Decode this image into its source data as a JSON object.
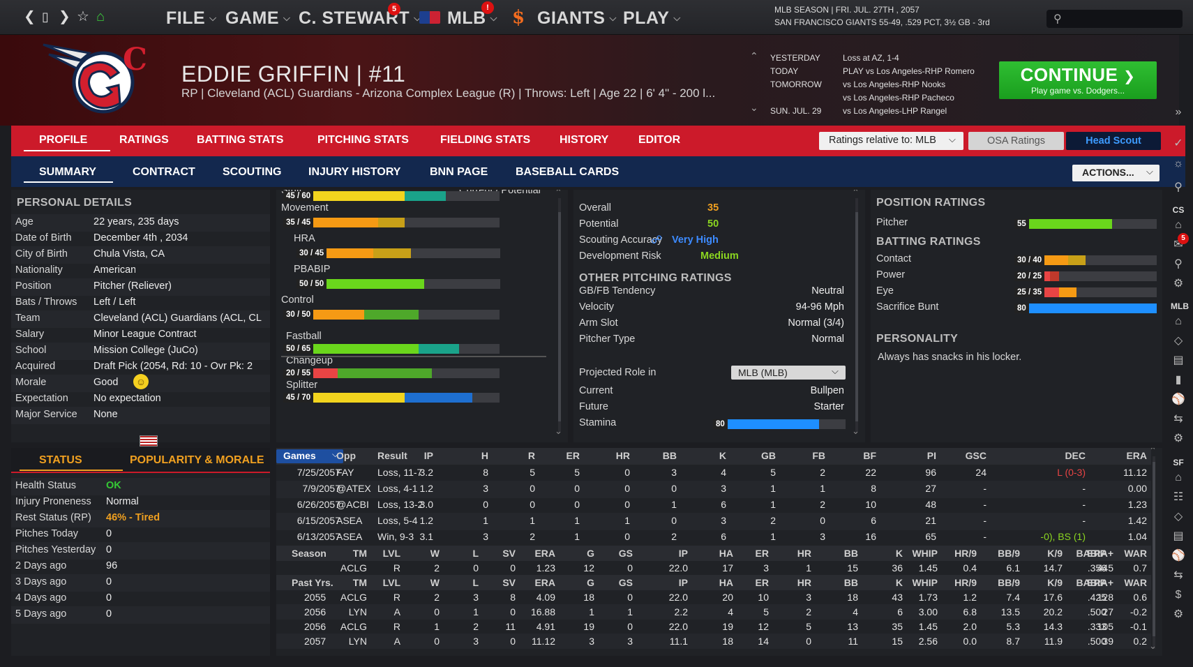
{
  "topbar": {
    "menus": [
      "FILE",
      "GAME",
      "C. STEWART",
      "MLB",
      "GIANTS",
      "PLAY"
    ],
    "badges": {
      "c_stewart": "5",
      "mlb": "!"
    },
    "season_line1": "MLB SEASON  |  FRI. JUL. 27TH , 2057",
    "season_line2": "SAN FRANCISCO GIANTS  55-49, .529 PCT, 3½ GB - 3rd"
  },
  "player": {
    "name": "EDDIE GRIFFIN  |  #11",
    "subtitle": "RP | Cleveland (ACL) Guardians - Arizona Complex League (R)  |  Throws: Left  |  Age 22  |  6' 4\"  - 200 l...",
    "logo_letter": "C"
  },
  "schedule": [
    {
      "day": "YESTERDAY",
      "game": "Loss at AZ, 1-4"
    },
    {
      "day": "TODAY",
      "game": "PLAY vs Los Angeles-RHP Romero"
    },
    {
      "day": "TOMORROW",
      "game": "vs Los Angeles-RHP Nooks"
    },
    {
      "day": "",
      "game": "vs Los Angeles-RHP Pacheco"
    },
    {
      "day": "SUN. JUL. 29",
      "game": "vs Los Angeles-LHP Rangel"
    }
  ],
  "continue": {
    "label": "CONTINUE",
    "sub": "Play game vs. Dodgers..."
  },
  "tabs_main": [
    "PROFILE",
    "RATINGS",
    "BATTING STATS",
    "PITCHING STATS",
    "FIELDING STATS",
    "HISTORY",
    "EDITOR"
  ],
  "ratings_relative": "Ratings relative to: MLB",
  "osa_ratings": "OSA Ratings",
  "head_scout": "Head Scout",
  "tabs_sub": [
    "SUMMARY",
    "CONTRACT",
    "SCOUTING",
    "INJURY HISTORY",
    "BNN PAGE",
    "BASEBALL CARDS"
  ],
  "actions": "ACTIONS...",
  "personal": {
    "title": "PERSONAL DETAILS",
    "rows": [
      {
        "k": "Age",
        "v": "22 years, 235 days"
      },
      {
        "k": "Date of Birth",
        "v": "December 4th , 2034"
      },
      {
        "k": "City of Birth",
        "v": "Chula Vista, CA"
      },
      {
        "k": "Nationality",
        "v": "American"
      },
      {
        "k": "Position",
        "v": "Pitcher (Reliever)"
      },
      {
        "k": "Bats / Throws",
        "v": "Left / Left"
      },
      {
        "k": "Team",
        "v": "Cleveland (ACL) Guardians (ACL, CL"
      },
      {
        "k": "Salary",
        "v": "Minor League Contract"
      },
      {
        "k": "School",
        "v": "Mission College (JuCo)"
      },
      {
        "k": "Acquired",
        "v": "Draft Pick (2054, Rd: 10 - Ovr Pk: 2"
      },
      {
        "k": "Morale",
        "v": "Good"
      },
      {
        "k": "Expectation",
        "v": "No expectation"
      },
      {
        "k": "Major Service",
        "v": "None"
      }
    ]
  },
  "status": {
    "tab1": "STATUS",
    "tab2": "POPULARITY & MORALE",
    "rows": [
      {
        "k": "Health Status",
        "v": "OK",
        "color": "#35c935"
      },
      {
        "k": "Injury Proneness",
        "v": "Normal",
        "color": ""
      },
      {
        "k": "Rest Status (RP)",
        "v": "46% - Tired",
        "color": "#f0a020"
      },
      {
        "k": "Pitches Today",
        "v": "0",
        "color": ""
      },
      {
        "k": "Pitches Yesterday",
        "v": "0",
        "color": ""
      },
      {
        "k": "2 Days ago",
        "v": "96",
        "color": ""
      },
      {
        "k": "3 Days ago",
        "v": "0",
        "color": ""
      },
      {
        "k": "4 Days ago",
        "v": "0",
        "color": ""
      },
      {
        "k": "5 Days ago",
        "v": "0",
        "color": ""
      }
    ]
  },
  "pitch_ratings": {
    "header_left": "Stuff",
    "header_right": "Current / Potential",
    "items": [
      {
        "name": "",
        "label": "45 / 60",
        "cur": 45,
        "pot": 60,
        "ccolor": "#f2d41e",
        "pcolor": "#1aa38a",
        "indent": false
      },
      {
        "name": "Movement",
        "label": "35 / 45",
        "cur": 35,
        "pot": 45,
        "ccolor": "#f59a14",
        "pcolor": "#c8a018",
        "indent": false
      },
      {
        "name": "HRA",
        "label": "30 / 45",
        "cur": 30,
        "pot": 45,
        "ccolor": "#f59a14",
        "pcolor": "#c8a018",
        "indent": true
      },
      {
        "name": "PBABIP",
        "label": "50 / 50",
        "cur": 50,
        "pot": 50,
        "ccolor": "#6ad61c",
        "pcolor": "#6ad61c",
        "indent": true
      },
      {
        "name": "Control",
        "label": "30 / 50",
        "cur": 30,
        "pot": 50,
        "ccolor": "#f59a14",
        "pcolor": "#4ea82a",
        "indent": false
      }
    ],
    "pitches": [
      {
        "name": "Fastball",
        "label": "50 / 65",
        "cur": 50,
        "pot": 65,
        "ccolor": "#6ad61c",
        "pcolor": "#1aa38a"
      },
      {
        "name": "Changeup",
        "label": "20 / 55",
        "cur": 20,
        "pot": 55,
        "ccolor": "#e84444",
        "pcolor": "#4ea82a"
      },
      {
        "name": "Splitter",
        "label": "45 / 70",
        "cur": 45,
        "pot": 70,
        "ccolor": "#f2d41e",
        "pcolor": "#1e6fd0"
      }
    ]
  },
  "overall": {
    "rows": [
      {
        "k": "Overall",
        "v": "35",
        "color": "#f0a020"
      },
      {
        "k": "Potential",
        "v": "50",
        "color": "#8bd620"
      },
      {
        "k": "Scouting Accuracy",
        "v": "Very High",
        "color": "#3d8bff"
      },
      {
        "k": "Development Risk",
        "v": "Medium",
        "color": "#8bd620"
      }
    ],
    "other_title": "OTHER PITCHING RATINGS",
    "other": [
      {
        "k": "GB/FB Tendency",
        "v": "Neutral"
      },
      {
        "k": "Velocity",
        "v": "94-96 Mph"
      },
      {
        "k": "Arm Slot",
        "v": "Normal (3/4)"
      },
      {
        "k": "Pitcher Type",
        "v": "Normal"
      }
    ],
    "projected_label": "Projected Role in",
    "projected_select": "MLB (MLB)",
    "roles": [
      {
        "k": "Current",
        "v": "Bullpen"
      },
      {
        "k": "Future",
        "v": "Starter"
      }
    ],
    "stamina_label": "Stamina",
    "stamina": 80
  },
  "position_ratings": {
    "title": "POSITION RATINGS",
    "pitcher_label": "Pitcher",
    "pitcher_label_val": "55",
    "pitcher": 55,
    "batting_title": "BATTING RATINGS",
    "batting": [
      {
        "k": "Contact",
        "label": "30 / 40",
        "cur": 30,
        "pot": 40,
        "ccolor": "#f59a14",
        "pcolor": "#c8a018"
      },
      {
        "k": "Power",
        "label": "20 / 25",
        "cur": 20,
        "pot": 25,
        "ccolor": "#e84444",
        "pcolor": "#c0392b"
      },
      {
        "k": "Eye",
        "label": "25 / 35",
        "cur": 25,
        "pot": 35,
        "ccolor": "#e84444",
        "pcolor": "#f59a14"
      },
      {
        "k": "Sacrifice Bunt",
        "label": "80",
        "cur": 80,
        "pot": 80,
        "ccolor": "#1e8fff",
        "pcolor": "#1e8fff"
      }
    ],
    "personality_title": "PERSONALITY",
    "personality": "Always has snacks in his locker."
  },
  "games": {
    "select": "Games",
    "headers": [
      "Opp",
      "Result",
      "IP",
      "H",
      "R",
      "ER",
      "HR",
      "BB",
      "K",
      "GB",
      "FB",
      "BF",
      "PI",
      "GSC",
      "DEC",
      "ERA"
    ],
    "rows": [
      [
        "7/25/2057",
        "FAY",
        "Loss, 11-7",
        "3.2",
        "8",
        "5",
        "5",
        "0",
        "3",
        "4",
        "5",
        "2",
        "22",
        "96",
        "24",
        "L (0-3)",
        "11.12"
      ],
      [
        "7/9/2057",
        "@ATEX",
        "Loss, 4-1",
        "1.2",
        "3",
        "0",
        "0",
        "0",
        "0",
        "3",
        "1",
        "1",
        "8",
        "27",
        "-",
        "-",
        "0.00"
      ],
      [
        "6/26/2057",
        "@ACBI",
        "Loss, 13-2",
        "3.0",
        "0",
        "0",
        "0",
        "0",
        "1",
        "6",
        "1",
        "2",
        "10",
        "48",
        "-",
        "-",
        "1.23"
      ],
      [
        "6/15/2057",
        "ASEA",
        "Loss, 5-4",
        "1.2",
        "1",
        "1",
        "1",
        "1",
        "0",
        "3",
        "2",
        "0",
        "6",
        "21",
        "-",
        "-",
        "1.42"
      ],
      [
        "6/13/2057",
        "ASEA",
        "Win, 9-3",
        "3.1",
        "3",
        "2",
        "1",
        "0",
        "2",
        "6",
        "1",
        "3",
        "16",
        "65",
        "-",
        "-0), BS (1)",
        "1.04"
      ]
    ],
    "season_headers": [
      "Season",
      "TM",
      "LVL",
      "W",
      "L",
      "SV",
      "ERA",
      "G",
      "GS",
      "IP",
      "HA",
      "ER",
      "HR",
      "BB",
      "K",
      "WHIP",
      "HR/9",
      "BB/9",
      "K/9",
      "BABIP",
      "ERA+",
      "WAR"
    ],
    "season_row": [
      "",
      "ACLG",
      "R",
      "2",
      "0",
      "0",
      "1.23",
      "12",
      "0",
      "22.0",
      "17",
      "3",
      "1",
      "15",
      "36",
      "1.45",
      "0.4",
      "6.1",
      "14.7",
      ".356",
      "445",
      "0.7"
    ],
    "past_headers": [
      "Past Yrs.",
      "TM",
      "LVL",
      "W",
      "L",
      "SV",
      "ERA",
      "G",
      "GS",
      "IP",
      "HA",
      "ER",
      "HR",
      "BB",
      "K",
      "WHIP",
      "HR/9",
      "BB/9",
      "K/9",
      "BABIP",
      "ERA+",
      "WAR"
    ],
    "past_rows": [
      [
        "2055",
        "ACLG",
        "R",
        "2",
        "3",
        "8",
        "4.09",
        "18",
        "0",
        "22.0",
        "20",
        "10",
        "3",
        "18",
        "43",
        "1.73",
        "1.2",
        "7.4",
        "17.6",
        ".425",
        "128",
        "0.6"
      ],
      [
        "2056",
        "LYN",
        "A",
        "0",
        "1",
        "0",
        "16.88",
        "1",
        "1",
        "2.2",
        "4",
        "5",
        "2",
        "4",
        "6",
        "3.00",
        "6.8",
        "13.5",
        "20.2",
        ".500",
        "27",
        "-0.2"
      ],
      [
        "2056",
        "ACLG",
        "R",
        "1",
        "2",
        "11",
        "4.91",
        "19",
        "0",
        "22.0",
        "19",
        "12",
        "5",
        "13",
        "35",
        "1.45",
        "2.0",
        "5.3",
        "14.3",
        ".333",
        "105",
        "-0.1"
      ],
      [
        "2057",
        "LYN",
        "A",
        "0",
        "3",
        "0",
        "11.12",
        "3",
        "3",
        "11.1",
        "18",
        "14",
        "0",
        "11",
        "15",
        "2.56",
        "0.0",
        "8.7",
        "11.9",
        ".500",
        "39",
        "0.2"
      ]
    ]
  },
  "sidebar_labels": [
    "CS",
    "MLB",
    "SF"
  ],
  "sidebar_badge": "5"
}
